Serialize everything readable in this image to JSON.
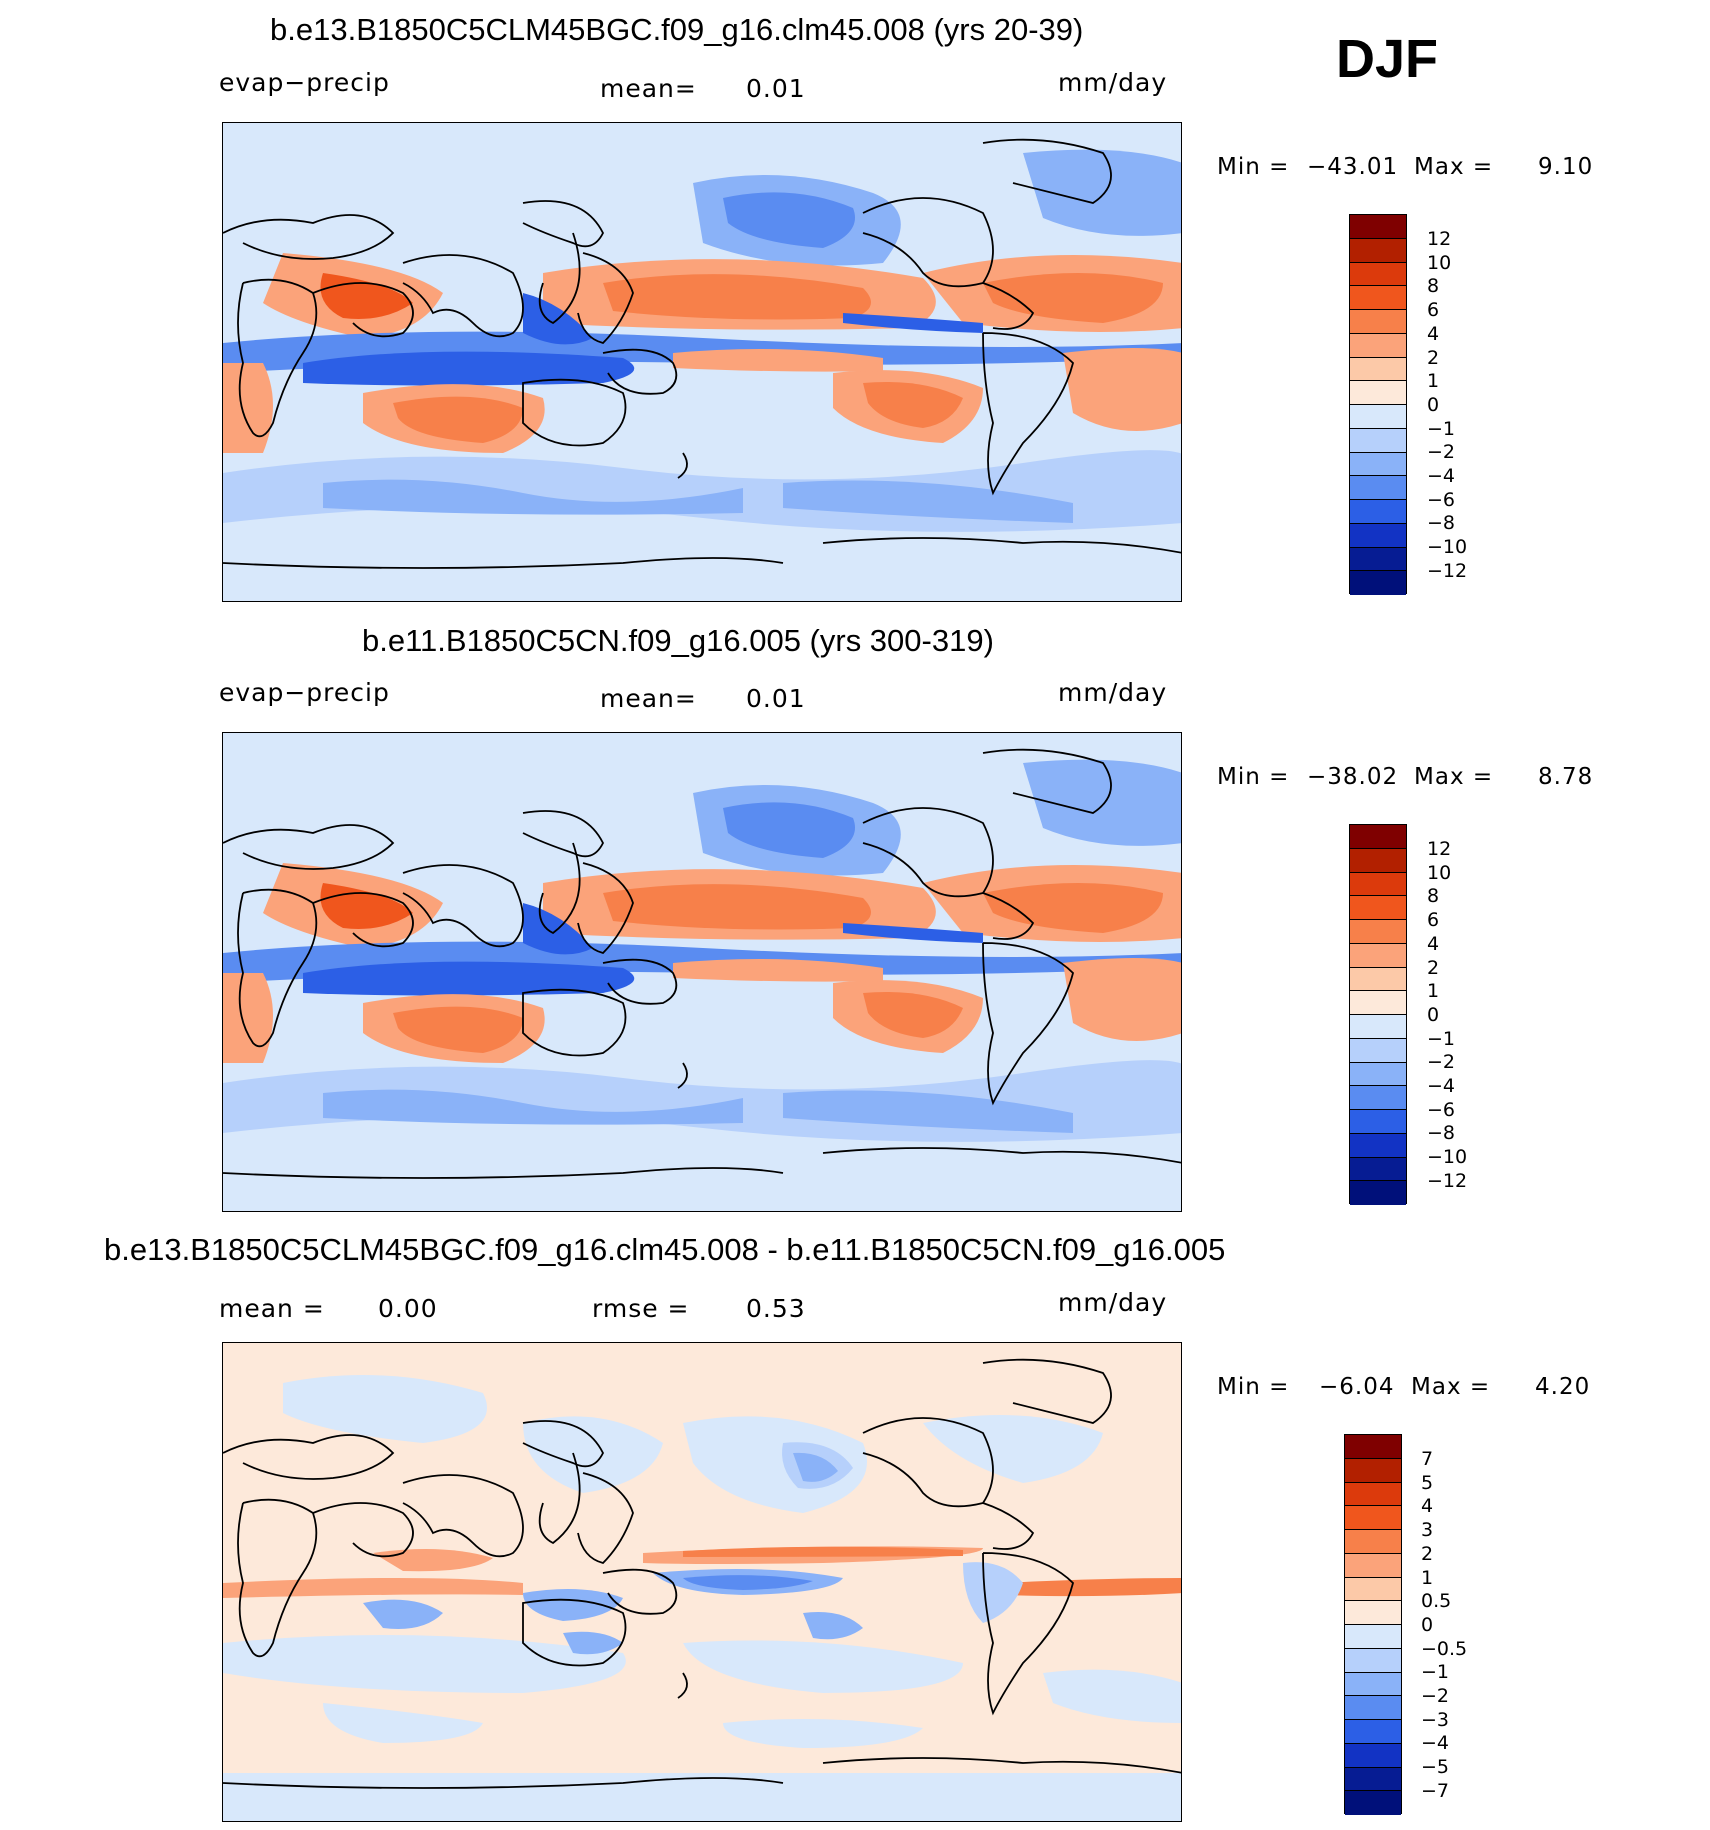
{
  "season": "DJF",
  "panels": [
    {
      "title": "b.e13.B1850C5CLM45BGC.f09_g16.clm45.008 (yrs 20-39)",
      "left_label": "evap−precip",
      "mid_label": "mean=",
      "mid_value": "0.01",
      "units": "mm/day",
      "min_label": "Min  =  ",
      "min_value": "−43.01",
      "max_label": "Max  =",
      "max_value": "9.10",
      "colorbar": {
        "ticks": [
          "12",
          "10",
          "8",
          "6",
          "4",
          "2",
          "1",
          "0",
          "−1",
          "−2",
          "−4",
          "−6",
          "−8",
          "−10",
          "−12"
        ],
        "colors": [
          "#7f0000",
          "#b22000",
          "#dc3a0c",
          "#f0561d",
          "#f7804a",
          "#fba37a",
          "#fcc9a8",
          "#fde9da",
          "#d8e8fb",
          "#b6d0fb",
          "#8ab2f8",
          "#5a8cf1",
          "#2c5fe6",
          "#1233c4",
          "#061c93",
          "#00107a"
        ]
      }
    },
    {
      "title": "b.e11.B1850C5CN.f09_g16.005 (yrs 300-319)",
      "left_label": "evap−precip",
      "mid_label": "mean=",
      "mid_value": "0.01",
      "units": "mm/day",
      "min_label": "Min  =  ",
      "min_value": "−38.02",
      "max_label": "Max  =",
      "max_value": "8.78",
      "colorbar": {
        "ticks": [
          "12",
          "10",
          "8",
          "6",
          "4",
          "2",
          "1",
          "0",
          "−1",
          "−2",
          "−4",
          "−6",
          "−8",
          "−10",
          "−12"
        ],
        "colors": [
          "#7f0000",
          "#b22000",
          "#dc3a0c",
          "#f0561d",
          "#f7804a",
          "#fba37a",
          "#fcc9a8",
          "#fde9da",
          "#d8e8fb",
          "#b6d0fb",
          "#8ab2f8",
          "#5a8cf1",
          "#2c5fe6",
          "#1233c4",
          "#061c93",
          "#00107a"
        ]
      }
    },
    {
      "title": "b.e13.B1850C5CLM45BGC.f09_g16.clm45.008 - b.e11.B1850C5CN.f09_g16.005",
      "left_label": "mean  =",
      "left_value": "0.00",
      "mid_label": "rmse  =",
      "mid_value": "0.53",
      "units": "mm/day",
      "min_label": "Min  =",
      "min_value": "−6.04",
      "max_label": "Max  =",
      "max_value": "4.20",
      "colorbar": {
        "ticks": [
          "7",
          "5",
          "4",
          "3",
          "2",
          "1",
          "0.5",
          "0",
          "−0.5",
          "−1",
          "−2",
          "−3",
          "−4",
          "−5",
          "−7"
        ],
        "colors": [
          "#7f0000",
          "#b22000",
          "#dc3a0c",
          "#f0561d",
          "#f7804a",
          "#fba37a",
          "#fcc9a8",
          "#fde9da",
          "#d8e8fb",
          "#b6d0fb",
          "#8ab2f8",
          "#5a8cf1",
          "#2c5fe6",
          "#1233c4",
          "#061c93",
          "#00107a"
        ]
      }
    }
  ],
  "map_colors": {
    "ocean_bg": "#d8e8fb",
    "diff_bg": "#fde9da",
    "coast": "#000000"
  }
}
